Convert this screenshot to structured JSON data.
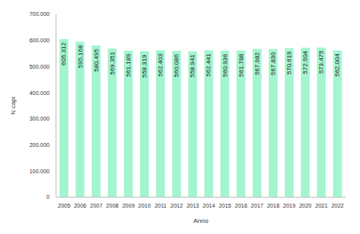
{
  "chart_data": {
    "type": "bar",
    "x_label": "Anno",
    "y_label": "N capi",
    "categories": [
      "2005",
      "2006",
      "2007",
      "2008",
      "2009",
      "2010",
      "2011",
      "2012",
      "2013",
      "2014",
      "2015",
      "2016",
      "2017",
      "2018",
      "2019",
      "2020",
      "2021",
      "2022"
    ],
    "values": [
      605312,
      595168,
      580495,
      569351,
      561189,
      558319,
      562403,
      560086,
      558941,
      562441,
      560936,
      561788,
      567982,
      567830,
      570619,
      572504,
      573475,
      562004
    ],
    "value_labels": [
      "605.312",
      "595.168",
      "580.495",
      "569.351",
      "561.189",
      "558.319",
      "562.403",
      "560.086",
      "558.941",
      "562.441",
      "560.936",
      "561.788",
      "567.982",
      "567.830",
      "570.619",
      "572.504",
      "573.475",
      "562.004"
    ],
    "data_labels": true,
    "color": "#a3f5cf",
    "grid": false,
    "ylim": [
      0,
      700000
    ],
    "yticks": [
      0,
      {
        "value": 100000,
        "label": "100.000"
      },
      {
        "value": 200000,
        "label": "200.000"
      },
      {
        "value": 300000,
        "label": "300.000"
      },
      {
        "value": 400000,
        "label": "400.000"
      },
      {
        "value": 500000,
        "label": "500.000"
      },
      {
        "value": 600000,
        "label": "600.000"
      },
      {
        "value": 700000,
        "label": "700.000"
      }
    ]
  }
}
